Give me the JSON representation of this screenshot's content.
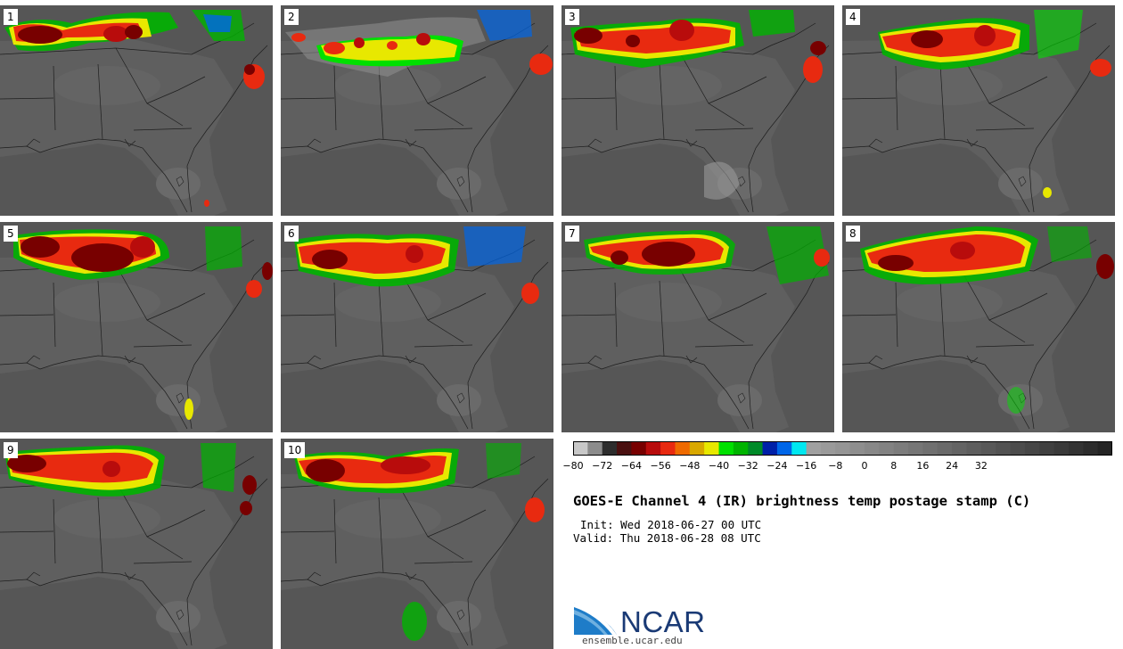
{
  "figure": {
    "title": "GOES-E Channel 4 (IR) brightness temp postage stamp (C)",
    "init": "Init: Wed 2018-06-27 00 UTC",
    "valid": "Valid: Thu 2018-06-28 08 UTC"
  },
  "panels": [
    {
      "label": "1"
    },
    {
      "label": "2"
    },
    {
      "label": "3"
    },
    {
      "label": "4"
    },
    {
      "label": "5"
    },
    {
      "label": "6"
    },
    {
      "label": "7"
    },
    {
      "label": "8"
    },
    {
      "label": "9"
    },
    {
      "label": "10"
    }
  ],
  "colorbar": {
    "colors": [
      "#c8c8c8",
      "#8c8c8c",
      "#2d2d2d",
      "#4a1010",
      "#780000",
      "#b80c0c",
      "#e82a10",
      "#ee6a00",
      "#d9a800",
      "#e8e800",
      "#00e000",
      "#00b400",
      "#008a28",
      "#0020a8",
      "#0066e8",
      "#00e8f0",
      "#a0a0a0",
      "#9a9a9a",
      "#959595",
      "#8e8e8e",
      "#888888",
      "#828282",
      "#7c7c7c",
      "#767676",
      "#707070",
      "#6a6a6a",
      "#646464",
      "#5e5e5e",
      "#585858",
      "#525252",
      "#4c4c4c",
      "#464646",
      "#404040",
      "#3a3a3a",
      "#333333",
      "#2c2c2c",
      "#242424"
    ],
    "ticks": [
      "−80",
      "−72",
      "−64",
      "−56",
      "−48",
      "−40",
      "−32",
      "−24",
      "−16",
      "−8",
      "0",
      "8",
      "16",
      "24",
      "32"
    ]
  },
  "logo": {
    "name": "NCAR",
    "url": "ensemble.ucar.edu"
  }
}
